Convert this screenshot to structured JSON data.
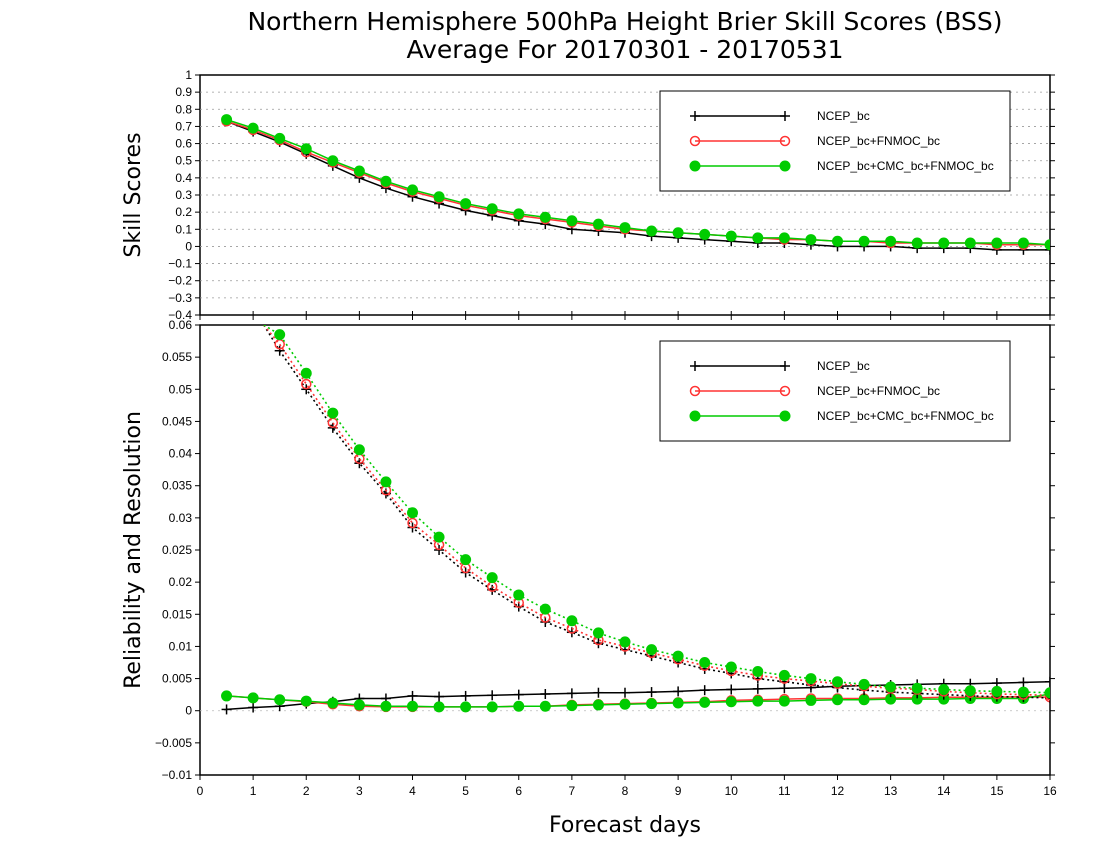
{
  "title_line1": "Northern Hemisphere 500hPa Height Brier Skill Scores (BSS)",
  "title_line2": "Average For 20170301 - 20170531",
  "xlabel": "Forecast days",
  "colors": {
    "NCEP_bc": "#000000",
    "NCEP_bc+FNMOC_bc": "#ff3333",
    "NCEP_bc+CMC_bc+FNMOC_bc": "#00cc00"
  },
  "chart_data": [
    {
      "type": "line",
      "panel": "top",
      "ylabel": "Skill Scores",
      "ylim": [
        -0.4,
        1.0
      ],
      "xlim": [
        0,
        16
      ],
      "x_ticks": [
        "0",
        "1",
        "2",
        "3",
        "4",
        "5",
        "6",
        "7",
        "8",
        "9",
        "10",
        "11",
        "12",
        "13",
        "14",
        "15",
        "16"
      ],
      "y_ticks": [
        "1",
        "0.9",
        "0.8",
        "0.7",
        "0.6",
        "0.5",
        "0.4",
        "0.3",
        "0.2",
        "0.1",
        "0",
        "−0.1",
        "−0.2",
        "−0.3",
        "−0.4"
      ],
      "grid": true,
      "legend_position": "top-right",
      "x": [
        0.5,
        1,
        1.5,
        2,
        2.5,
        3,
        3.5,
        4,
        4.5,
        5,
        5.5,
        6,
        6.5,
        7,
        7.5,
        8,
        8.5,
        9,
        9.5,
        10,
        10.5,
        11,
        11.5,
        12,
        12.5,
        13,
        13.5,
        14,
        14.5,
        15,
        15.5,
        16
      ],
      "series": [
        {
          "name": "NCEP_bc",
          "marker": "plus",
          "values": [
            0.73,
            0.67,
            0.61,
            0.54,
            0.47,
            0.4,
            0.34,
            0.29,
            0.25,
            0.21,
            0.18,
            0.15,
            0.13,
            0.1,
            0.09,
            0.08,
            0.06,
            0.05,
            0.04,
            0.03,
            0.02,
            0.02,
            0.01,
            0.0,
            0.0,
            0.0,
            -0.01,
            -0.01,
            -0.01,
            -0.02,
            -0.02,
            -0.02
          ]
        },
        {
          "name": "NCEP_bc+FNMOC_bc",
          "marker": "open-circle",
          "values": [
            0.73,
            0.68,
            0.62,
            0.55,
            0.49,
            0.43,
            0.37,
            0.32,
            0.28,
            0.24,
            0.21,
            0.18,
            0.16,
            0.14,
            0.12,
            0.1,
            0.09,
            0.08,
            0.07,
            0.06,
            0.05,
            0.04,
            0.04,
            0.03,
            0.03,
            0.02,
            0.02,
            0.02,
            0.02,
            0.01,
            0.01,
            0.01
          ]
        },
        {
          "name": "NCEP_bc+CMC_bc+FNMOC_bc",
          "marker": "filled-circle",
          "values": [
            0.74,
            0.69,
            0.63,
            0.57,
            0.5,
            0.44,
            0.38,
            0.33,
            0.29,
            0.25,
            0.22,
            0.19,
            0.17,
            0.15,
            0.13,
            0.11,
            0.09,
            0.08,
            0.07,
            0.06,
            0.05,
            0.05,
            0.04,
            0.03,
            0.03,
            0.03,
            0.02,
            0.02,
            0.02,
            0.02,
            0.02,
            0.01
          ]
        }
      ]
    },
    {
      "type": "line",
      "panel": "bottom",
      "ylabel": "Reliability and Resolution",
      "ylim": [
        -0.01,
        0.06
      ],
      "xlim": [
        0,
        16
      ],
      "x_ticks": [
        "0",
        "1",
        "2",
        "3",
        "4",
        "5",
        "6",
        "7",
        "8",
        "9",
        "10",
        "11",
        "12",
        "13",
        "14",
        "15",
        "16"
      ],
      "y_ticks": [
        "0.06",
        "0.055",
        "0.05",
        "0.045",
        "0.04",
        "0.035",
        "0.03",
        "0.025",
        "0.02",
        "0.015",
        "0.01",
        "0.005",
        "0",
        "−0.005",
        "−0.01"
      ],
      "grid": false,
      "legend_position": "top-right",
      "x": [
        0.5,
        1,
        1.5,
        2,
        2.5,
        3,
        3.5,
        4,
        4.5,
        5,
        5.5,
        6,
        6.5,
        7,
        7.5,
        8,
        8.5,
        9,
        9.5,
        10,
        10.5,
        11,
        11.5,
        12,
        12.5,
        13,
        13.5,
        14,
        14.5,
        15,
        15.5,
        16
      ],
      "reliability_series": [
        {
          "name": "NCEP_bc",
          "marker": "plus",
          "line": "solid",
          "values": [
            0.0002,
            0.0005,
            0.0007,
            0.0011,
            0.0014,
            0.0019,
            0.0019,
            0.0023,
            0.0022,
            0.0023,
            0.0024,
            0.0025,
            0.0026,
            0.0027,
            0.0028,
            0.0028,
            0.0029,
            0.003,
            0.0032,
            0.0033,
            0.0034,
            0.0035,
            0.0036,
            0.0038,
            0.0039,
            0.004,
            0.0041,
            0.0042,
            0.0042,
            0.0043,
            0.0044,
            0.0045
          ]
        },
        {
          "name": "NCEP_bc+FNMOC_bc",
          "marker": "open-circle",
          "line": "solid",
          "values": [
            0.0023,
            0.002,
            0.0017,
            0.0014,
            0.001,
            0.0007,
            0.0006,
            0.0006,
            0.0006,
            0.0006,
            0.0006,
            0.0007,
            0.0007,
            0.0009,
            0.001,
            0.0011,
            0.0012,
            0.0013,
            0.0014,
            0.0016,
            0.0017,
            0.0018,
            0.0019,
            0.0019,
            0.0019,
            0.002,
            0.002,
            0.0021,
            0.0021,
            0.0021,
            0.0022,
            0.0021
          ]
        },
        {
          "name": "NCEP_bc+CMC_bc+FNMOC_bc",
          "marker": "filled-circle",
          "line": "solid",
          "values": [
            0.0023,
            0.002,
            0.0017,
            0.0015,
            0.0012,
            0.0009,
            0.0007,
            0.0007,
            0.0006,
            0.0006,
            0.0006,
            0.0007,
            0.0007,
            0.0008,
            0.0009,
            0.001,
            0.0011,
            0.0012,
            0.0013,
            0.0014,
            0.0015,
            0.0015,
            0.0016,
            0.0017,
            0.0017,
            0.0018,
            0.0018,
            0.0018,
            0.0019,
            0.0019,
            0.0019,
            0.0026
          ]
        }
      ],
      "resolution_series": [
        {
          "name": "NCEP_bc",
          "marker": "plus",
          "line": "dotted",
          "values": [
            null,
            null,
            0.056,
            0.05,
            0.044,
            0.0385,
            0.0338,
            0.0285,
            0.025,
            0.0215,
            0.0188,
            0.0162,
            0.0138,
            0.0122,
            0.0105,
            0.0095,
            0.0085,
            0.0075,
            0.0065,
            0.0058,
            0.005,
            0.0045,
            0.004,
            0.0036,
            0.0032,
            0.0029,
            0.0027,
            0.0025,
            0.0023,
            0.0022,
            0.0021,
            0.002
          ]
        },
        {
          "name": "NCEP_bc+FNMOC_bc",
          "marker": "open-circle",
          "line": "dotted",
          "values": [
            null,
            null,
            0.057,
            0.0508,
            0.0448,
            0.0392,
            0.0343,
            0.0292,
            0.0258,
            0.0222,
            0.0193,
            0.0168,
            0.0145,
            0.0128,
            0.011,
            0.01,
            0.009,
            0.008,
            0.007,
            0.0062,
            0.0055,
            0.005,
            0.0046,
            0.0042,
            0.0038,
            0.0035,
            0.0033,
            0.003,
            0.0028,
            0.0026,
            0.0025,
            0.0024
          ]
        },
        {
          "name": "NCEP_bc+CMC_bc+FNMOC_bc",
          "marker": "filled-circle",
          "line": "dotted",
          "values": [
            null,
            null,
            0.0585,
            0.0525,
            0.0463,
            0.0406,
            0.0356,
            0.0308,
            0.027,
            0.0235,
            0.0207,
            0.018,
            0.0158,
            0.014,
            0.0121,
            0.0107,
            0.0095,
            0.0085,
            0.0075,
            0.0068,
            0.0061,
            0.0055,
            0.005,
            0.0045,
            0.0041,
            0.0037,
            0.0035,
            0.0033,
            0.0031,
            0.003,
            0.0029,
            0.0028
          ]
        }
      ],
      "resolution_leadin": {
        "x": [
          1.2,
          1.5
        ],
        "values": [
          0.06,
          0.0575
        ]
      }
    }
  ]
}
